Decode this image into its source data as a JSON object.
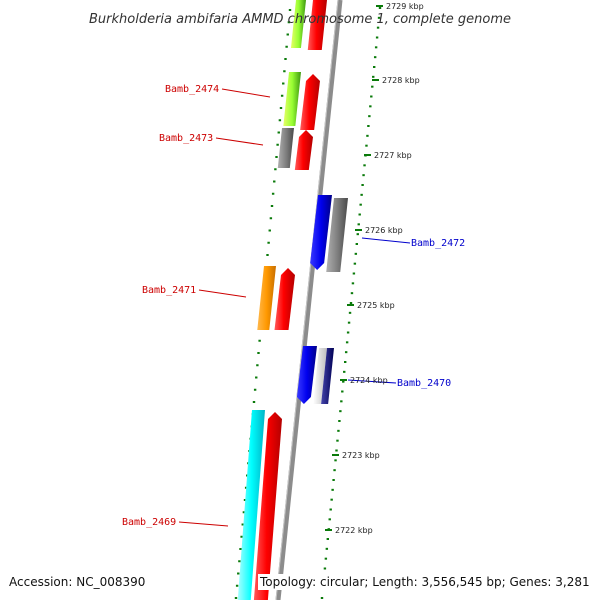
{
  "title": "Burkholderia ambifaria AMMD chromosome 1, complete genome",
  "ticks": [
    {
      "label": "2729 kbp",
      "y": 2729
    },
    {
      "label": "2728 kbp",
      "y": 2728
    },
    {
      "label": "2727 kbp",
      "y": 2727
    },
    {
      "label": "2726 kbp",
      "y": 2726
    },
    {
      "label": "2725 kbp",
      "y": 2725
    },
    {
      "label": "2724 kbp",
      "y": 2724
    },
    {
      "label": "2723 kbp",
      "y": 2723
    },
    {
      "label": "2722 kbp",
      "y": 2722
    }
  ],
  "genes": [
    {
      "name": "Bamb_2474",
      "side": "left",
      "color": "#cc0000"
    },
    {
      "name": "Bamb_2473",
      "side": "left",
      "color": "#cc0000"
    },
    {
      "name": "Bamb_2472",
      "side": "right",
      "color": "#0000cc"
    },
    {
      "name": "Bamb_2471",
      "side": "left",
      "color": "#cc0000"
    },
    {
      "name": "Bamb_2470",
      "side": "right",
      "color": "#0000cc"
    },
    {
      "name": "Bamb_2469",
      "side": "left",
      "color": "#cc0000"
    }
  ],
  "footer": {
    "accession": "Accession: NC_008390",
    "topology": "Topology: circular; Length: 3,556,545 bp; Genes: 3,281"
  },
  "colors": {
    "red_feature": "#ff0000",
    "blue_feature": "#0000ee",
    "gray_feature": "#808080",
    "orange_feature": "#ff9900",
    "cyan_feature": "#00ffff",
    "green_feature": "#99ff33",
    "tick_green": "#0a7a0a",
    "backbone": "#8c8c8c"
  }
}
